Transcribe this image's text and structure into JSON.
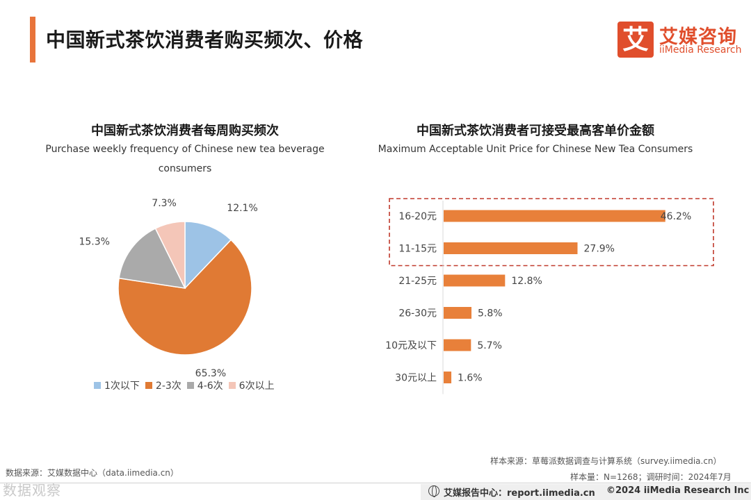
{
  "page": {
    "title": "中国新式茶饮消费者购买频次、价格"
  },
  "logo": {
    "glyph": "艾",
    "name_cn": "艾媒咨询",
    "name_en": "iiMedia Research"
  },
  "chart_data": [
    {
      "type": "pie",
      "title": "中国新式茶饮消费者每周购买频次",
      "subtitle": "Purchase weekly frequency of Chinese new tea beverage consumers",
      "categories": [
        "1次以下",
        "2-3次",
        "4-6次",
        "6次以上"
      ],
      "values": [
        12.1,
        65.3,
        15.3,
        7.3
      ],
      "data_labels": [
        "12.1%",
        "65.3%",
        "15.3%",
        "7.3%"
      ],
      "colors": [
        "#9dc3e6",
        "#e07a34",
        "#aaaaaa",
        "#f4c6b8"
      ],
      "legend_position": "bottom"
    },
    {
      "type": "bar",
      "orientation": "horizontal",
      "title": "中国新式茶饮消费者可接受最高客单价金额",
      "subtitle": "Maximum Acceptable Unit Price for Chinese New Tea Consumers",
      "categories": [
        "16-20元",
        "11-15元",
        "21-25元",
        "26-30元",
        "10元及以下",
        "30元以上"
      ],
      "values": [
        46.2,
        27.9,
        12.8,
        5.8,
        5.7,
        1.6
      ],
      "data_labels": [
        "46.2%",
        "27.9%",
        "12.8%",
        "5.8%",
        "5.7%",
        "1.6%"
      ],
      "xlim": [
        0,
        50
      ],
      "bar_color": "#e8803a",
      "highlight": [
        "16-20元",
        "11-15元"
      ],
      "highlight_color": "#c0392b"
    }
  ],
  "footer": {
    "source": "数据来源：艾媒数据中心（data.iimedia.cn）",
    "sample_source": "样本来源：草莓派数据调查与计算系统（survey.iimedia.cn）",
    "sample_info": "样本量：N=1268；调研时间：2024年7月",
    "report_center": "艾媒报告中心：report.iimedia.cn",
    "copyright": "©2024  iiMedia Research  Inc",
    "watermark": "数据观察"
  }
}
